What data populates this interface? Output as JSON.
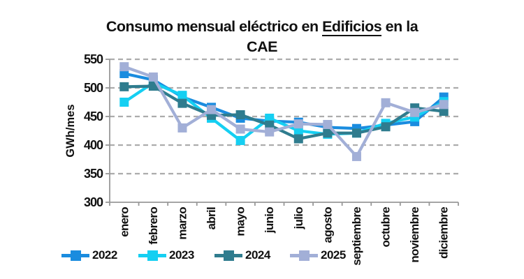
{
  "title": {
    "line1_prefix": "Consumo mensual eléctrico en ",
    "line1_underlined": "Edificios",
    "line1_suffix": " en la",
    "line2": "CAE"
  },
  "palette": {
    "grid": "#ACACAC",
    "axis": "#989898",
    "text": "#111111"
  },
  "chart_data": {
    "type": "line",
    "title": "Consumo mensual eléctrico en Edificios en la CAE",
    "xlabel": "",
    "ylabel": "GWh/mes",
    "ylim": [
      300,
      550
    ],
    "yticks": [
      300,
      350,
      400,
      450,
      500,
      550
    ],
    "grid": "horizontal-dashed",
    "legend_position": "bottom",
    "marker": "square",
    "categories": [
      "enero",
      "febrero",
      "marzo",
      "abril",
      "mayo",
      "junio",
      "julio",
      "agosto",
      "septiembre",
      "octubre",
      "noviembre",
      "diciembre"
    ],
    "series": [
      {
        "name": "2022",
        "color": "#1A8CDF",
        "values": [
          525,
          514,
          484,
          466,
          447,
          442,
          440,
          431,
          429,
          435,
          441,
          484
        ]
      },
      {
        "name": "2023",
        "color": "#15CFF2",
        "values": [
          475,
          509,
          487,
          447,
          408,
          447,
          425,
          419,
          421,
          438,
          449,
          476
        ]
      },
      {
        "name": "2024",
        "color": "#2F7C8E",
        "values": [
          502,
          503,
          473,
          452,
          453,
          435,
          411,
          421,
          421,
          432,
          465,
          459
        ]
      },
      {
        "name": "2025",
        "color": "#A2AFD7",
        "values": [
          537,
          519,
          430,
          462,
          428,
          423,
          437,
          436,
          380,
          474,
          457,
          471
        ]
      }
    ]
  }
}
